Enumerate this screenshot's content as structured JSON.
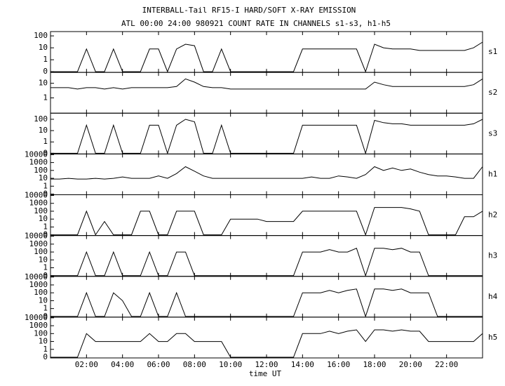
{
  "chart_data": {
    "type": "line",
    "title": "INTERBALL-Tail RF15-I HARD/SOFT X-RAY EMISSION",
    "subtitle": "ATL 00:00 24:00 980921  COUNT RATE IN CHANNELS s1-s3, h1-h5",
    "xlabel": "time UT",
    "yscale": "log",
    "xlim": [
      0,
      24
    ],
    "xticks": [
      {
        "value": 2,
        "label": "02:00"
      },
      {
        "value": 4,
        "label": "04:00"
      },
      {
        "value": 6,
        "label": "06:00"
      },
      {
        "value": 8,
        "label": "08:00"
      },
      {
        "value": 10,
        "label": "10:00"
      },
      {
        "value": 12,
        "label": "12:00"
      },
      {
        "value": 14,
        "label": "14:00"
      },
      {
        "value": 16,
        "label": "16:00"
      },
      {
        "value": 18,
        "label": "18:00"
      },
      {
        "value": 20,
        "label": "20:00"
      },
      {
        "value": 22,
        "label": "22:00"
      }
    ],
    "x": [
      0,
      0.5,
      1,
      1.5,
      2,
      2.5,
      3,
      3.5,
      4,
      4.5,
      5,
      5.5,
      6,
      6.5,
      7,
      7.5,
      8,
      8.5,
      9,
      9.5,
      10,
      10.5,
      11,
      11.5,
      12,
      12.5,
      13,
      13.5,
      14,
      14.5,
      15,
      15.5,
      16,
      16.5,
      17,
      17.5,
      18,
      18.5,
      19,
      19.5,
      20,
      20.5,
      21,
      21.5,
      22,
      22.5,
      23,
      23.5,
      24
    ],
    "series": [
      {
        "name": "s1",
        "color": "#000000",
        "ylim": [
          0,
          200
        ],
        "yticks": [
          0,
          1,
          10,
          100
        ],
        "values": [
          0,
          0,
          0,
          0,
          8,
          0,
          0,
          8,
          0,
          0,
          0,
          8,
          8,
          0,
          8,
          20,
          15,
          0,
          0,
          8,
          0,
          0,
          0,
          0,
          0,
          0,
          0,
          0,
          8,
          8,
          8,
          8,
          8,
          8,
          8,
          0,
          20,
          10,
          8,
          8,
          8,
          6,
          6,
          6,
          6,
          6,
          6,
          10,
          30
        ]
      },
      {
        "name": "s2",
        "color": "#000000",
        "ylim": [
          0,
          50
        ],
        "yticks": [
          1,
          10
        ],
        "values": [
          5,
          5,
          5,
          4,
          5,
          5,
          4,
          5,
          4,
          5,
          5,
          5,
          5,
          5,
          6,
          20,
          12,
          6,
          5,
          5,
          4,
          4,
          4,
          4,
          4,
          4,
          4,
          4,
          4,
          4,
          4,
          4,
          4,
          4,
          4,
          4,
          12,
          8,
          6,
          6,
          6,
          6,
          6,
          6,
          6,
          6,
          6,
          8,
          20
        ]
      },
      {
        "name": "s3",
        "color": "#000000",
        "ylim": [
          0,
          300
        ],
        "yticks": [
          0,
          1,
          10,
          100
        ],
        "values": [
          0,
          0,
          0,
          0,
          30,
          0,
          0,
          30,
          0,
          0,
          0,
          30,
          30,
          0,
          30,
          100,
          60,
          0,
          0,
          30,
          0,
          0,
          0,
          0,
          0,
          0,
          0,
          0,
          30,
          30,
          30,
          30,
          30,
          30,
          30,
          0,
          80,
          50,
          40,
          40,
          30,
          30,
          30,
          30,
          30,
          30,
          30,
          40,
          100
        ]
      },
      {
        "name": "h1",
        "color": "#000000",
        "ylim": [
          0,
          10000
        ],
        "yticks": [
          0,
          1,
          10,
          100,
          1000,
          10000
        ],
        "values": [
          8,
          8,
          10,
          8,
          8,
          10,
          8,
          10,
          15,
          10,
          10,
          10,
          20,
          10,
          40,
          300,
          80,
          20,
          10,
          10,
          10,
          10,
          10,
          10,
          10,
          10,
          10,
          10,
          10,
          15,
          10,
          10,
          20,
          15,
          10,
          30,
          300,
          100,
          200,
          100,
          150,
          60,
          30,
          20,
          20,
          15,
          10,
          10,
          300
        ]
      },
      {
        "name": "h2",
        "color": "#000000",
        "ylim": [
          0,
          10000
        ],
        "yticks": [
          0,
          1,
          10,
          100,
          1000,
          10000
        ],
        "values": [
          0,
          0,
          0,
          0,
          100,
          0,
          5,
          0,
          0,
          0,
          100,
          100,
          0,
          0,
          100,
          100,
          100,
          0,
          0,
          0,
          10,
          10,
          10,
          10,
          5,
          5,
          5,
          5,
          100,
          100,
          100,
          100,
          100,
          100,
          100,
          0,
          300,
          300,
          300,
          300,
          200,
          100,
          0,
          0,
          0,
          0,
          20,
          20,
          100
        ]
      },
      {
        "name": "h3",
        "color": "#000000",
        "ylim": [
          0,
          10000
        ],
        "yticks": [
          0,
          1,
          10,
          100,
          1000,
          10000
        ],
        "values": [
          0,
          0,
          0,
          0,
          100,
          0,
          0,
          100,
          0,
          0,
          0,
          100,
          0,
          0,
          100,
          100,
          0,
          0,
          0,
          0,
          0,
          0,
          0,
          0,
          0,
          0,
          0,
          0,
          100,
          100,
          100,
          200,
          100,
          100,
          300,
          0,
          300,
          300,
          200,
          300,
          100,
          100,
          0,
          0,
          0,
          0,
          0,
          0,
          0
        ]
      },
      {
        "name": "h4",
        "color": "#000000",
        "ylim": [
          0,
          10000
        ],
        "yticks": [
          0,
          1,
          10,
          100,
          1000,
          10000
        ],
        "values": [
          0,
          0,
          0,
          0,
          100,
          0,
          0,
          100,
          10,
          0,
          0,
          100,
          0,
          0,
          100,
          0,
          0,
          0,
          0,
          0,
          0,
          0,
          0,
          0,
          0,
          0,
          0,
          0,
          100,
          100,
          100,
          200,
          100,
          200,
          300,
          0,
          300,
          300,
          200,
          300,
          100,
          100,
          100,
          0,
          0,
          0,
          0,
          0,
          0
        ]
      },
      {
        "name": "h5",
        "color": "#000000",
        "ylim": [
          0,
          10000
        ],
        "yticks": [
          0,
          1,
          10,
          100,
          1000,
          10000
        ],
        "values": [
          0,
          0,
          0,
          0,
          100,
          10,
          10,
          10,
          10,
          10,
          10,
          100,
          10,
          10,
          100,
          100,
          10,
          10,
          10,
          10,
          0,
          0,
          0,
          0,
          0,
          0,
          0,
          0,
          100,
          100,
          100,
          200,
          100,
          200,
          300,
          10,
          300,
          300,
          200,
          300,
          200,
          200,
          10,
          10,
          10,
          10,
          10,
          10,
          100
        ]
      }
    ]
  }
}
